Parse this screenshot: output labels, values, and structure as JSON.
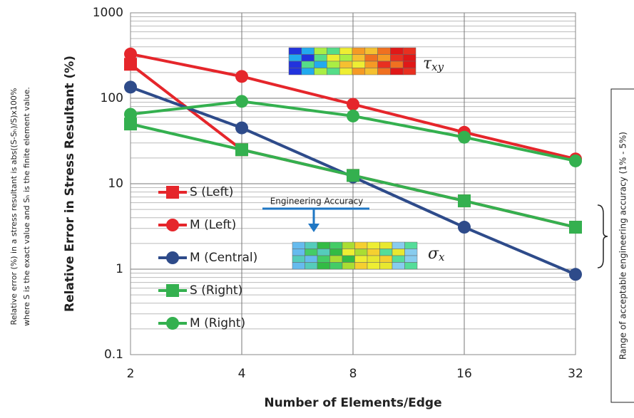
{
  "chart_data": {
    "type": "line",
    "x_label": "Number of Elements/Edge",
    "y_label": "Relative Error in Stress Resultant (%)",
    "x": [
      2,
      4,
      8,
      16,
      32
    ],
    "xlim": [
      2,
      32
    ],
    "xticks": [
      2,
      4,
      8,
      16,
      32
    ],
    "x_log": true,
    "ylim": [
      0.1,
      1000
    ],
    "yticks": [
      0.1,
      1,
      10,
      100,
      1000
    ],
    "y_log": true,
    "grid": true,
    "legend_position": "left",
    "series": [
      {
        "name": "S (Left)",
        "color": "#e5262b",
        "marker": "square",
        "values": [
          250,
          25,
          12.5,
          6.3,
          3.1
        ]
      },
      {
        "name": "M (Left)",
        "color": "#e5262b",
        "marker": "circle",
        "values": [
          330,
          180,
          85,
          40,
          19.5
        ]
      },
      {
        "name": "M (Central)",
        "color": "#2e4b8a",
        "marker": "circle",
        "values": [
          135,
          45,
          12,
          3.1,
          0.87
        ]
      },
      {
        "name": "S (Right)",
        "color": "#34b04f",
        "marker": "square",
        "values": [
          50,
          25,
          12.5,
          6.3,
          3.1
        ]
      },
      {
        "name": "M (Right)",
        "color": "#34b04f",
        "marker": "circle",
        "values": [
          65,
          92,
          62,
          35,
          18.5
        ]
      }
    ],
    "annotations": {
      "engineering_accuracy": "Engineering Accuracy",
      "tau": {
        "symbol": "τ",
        "subscript": "xy"
      },
      "sigma": {
        "symbol": "σ",
        "subscript": "x"
      },
      "left_note": [
        "Relative error (%) in a stress resultant is abs((S-Sₕ)/S)x100%",
        "where S is the exact value and Sₕ is the finite element value."
      ],
      "range_note": "Range of acceptable engineering accuracy (1% - 5%)"
    }
  }
}
